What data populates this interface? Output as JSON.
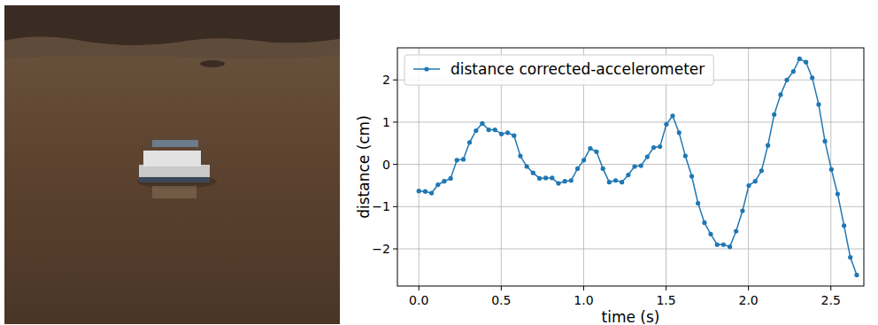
{
  "chart_data": {
    "type": "line",
    "x_label": "time (s)",
    "y_label": "distance (cm)",
    "x": [
      0.0,
      0.039,
      0.077,
      0.116,
      0.154,
      0.193,
      0.231,
      0.27,
      0.308,
      0.347,
      0.385,
      0.424,
      0.462,
      0.501,
      0.539,
      0.578,
      0.616,
      0.655,
      0.693,
      0.732,
      0.77,
      0.809,
      0.847,
      0.886,
      0.924,
      0.963,
      1.001,
      1.04,
      1.078,
      1.117,
      1.155,
      1.194,
      1.232,
      1.271,
      1.309,
      1.348,
      1.386,
      1.425,
      1.463,
      1.502,
      1.54,
      1.579,
      1.617,
      1.656,
      1.694,
      1.733,
      1.771,
      1.81,
      1.848,
      1.887,
      1.925,
      1.964,
      2.002,
      2.041,
      2.079,
      2.118,
      2.156,
      2.195,
      2.233,
      2.272,
      2.31,
      2.349,
      2.387,
      2.426,
      2.464,
      2.503,
      2.541,
      2.58,
      2.618,
      2.657
    ],
    "series": [
      {
        "name": "distance corrected-accelerometer",
        "color": "#1f77b4",
        "marker": "circle",
        "line_style": "solid",
        "values": [
          -0.63,
          -0.64,
          -0.68,
          -0.48,
          -0.4,
          -0.33,
          0.1,
          0.12,
          0.52,
          0.8,
          0.97,
          0.82,
          0.82,
          0.72,
          0.75,
          0.68,
          0.2,
          -0.05,
          -0.2,
          -0.33,
          -0.32,
          -0.32,
          -0.45,
          -0.4,
          -0.38,
          -0.1,
          0.1,
          0.38,
          0.3,
          -0.1,
          -0.42,
          -0.38,
          -0.42,
          -0.25,
          -0.05,
          -0.03,
          0.18,
          0.4,
          0.42,
          0.95,
          1.15,
          0.75,
          0.2,
          -0.28,
          -0.92,
          -1.38,
          -1.65,
          -1.9,
          -1.9,
          -1.95,
          -1.58,
          -1.1,
          -0.5,
          -0.4,
          -0.15,
          0.45,
          1.18,
          1.65,
          2.0,
          2.2,
          2.5,
          2.42,
          2.05,
          1.42,
          0.55,
          -0.12,
          -0.7,
          -1.45,
          -2.2,
          -2.62
        ]
      }
    ],
    "xlim": [
      -0.13,
      2.7
    ],
    "ylim": [
      -2.88,
      2.76
    ],
    "xticks": [
      {
        "value": 0,
        "label": "0.0"
      },
      {
        "value": 0.5,
        "label": "0.5"
      },
      {
        "value": 1,
        "label": "1.0"
      },
      {
        "value": 1.5,
        "label": "1.5"
      },
      {
        "value": 2,
        "label": "2.0"
      },
      {
        "value": 2.5,
        "label": "2.5"
      }
    ],
    "yticks": [
      {
        "value": -2,
        "label": "−2"
      },
      {
        "value": -1,
        "label": "−1"
      },
      0,
      1,
      2
    ],
    "grid": true,
    "legend": "upper left"
  }
}
